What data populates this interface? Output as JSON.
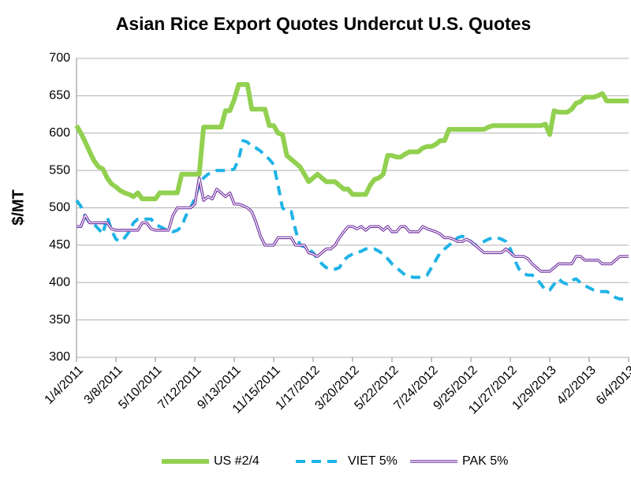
{
  "chart_data": {
    "type": "line",
    "title": "Asian Rice Export Quotes Undercut U.S. Quotes",
    "y_label": "$/MT",
    "categories": [
      "1/4/2011",
      null,
      null,
      null,
      null,
      null,
      null,
      null,
      null,
      "3/8/2011",
      null,
      null,
      null,
      null,
      null,
      null,
      null,
      null,
      "5/10/2011",
      null,
      null,
      null,
      null,
      null,
      null,
      null,
      null,
      "7/12/2011",
      null,
      null,
      null,
      null,
      null,
      null,
      null,
      null,
      "9/13/2011",
      null,
      null,
      null,
      null,
      null,
      null,
      null,
      null,
      "11/15/2011",
      null,
      null,
      null,
      null,
      null,
      null,
      null,
      null,
      "1/17/2012",
      null,
      null,
      null,
      null,
      null,
      null,
      null,
      null,
      "3/20/2012",
      null,
      null,
      null,
      null,
      null,
      null,
      null,
      null,
      "5/22/2012",
      null,
      null,
      null,
      null,
      null,
      null,
      null,
      null,
      "7/24/2012",
      null,
      null,
      null,
      null,
      null,
      null,
      null,
      null,
      "9/25/2012",
      null,
      null,
      null,
      null,
      null,
      null,
      null,
      null,
      "11/27/2012",
      null,
      null,
      null,
      null,
      null,
      null,
      null,
      null,
      "1/29/2013",
      null,
      null,
      null,
      null,
      null,
      null,
      null,
      null,
      "4/2/2013",
      null,
      null,
      null,
      null,
      null,
      null,
      null,
      null,
      "6/4/2013"
    ],
    "series": [
      {
        "name": "US #2/4",
        "color": "#92d050",
        "style": "solid",
        "values": [
          610,
          600,
          588,
          575,
          563,
          555,
          552,
          540,
          532,
          528,
          523,
          520,
          518,
          515,
          520,
          512,
          512,
          512,
          512,
          520,
          520,
          520,
          520,
          520,
          545,
          545,
          545,
          545,
          545,
          608,
          608,
          608,
          608,
          608,
          630,
          630,
          645,
          665,
          665,
          665,
          632,
          632,
          632,
          632,
          610,
          610,
          600,
          598,
          570,
          565,
          560,
          555,
          545,
          535,
          540,
          545,
          540,
          535,
          535,
          535,
          530,
          525,
          525,
          518,
          518,
          518,
          518,
          530,
          538,
          540,
          545,
          570,
          570,
          568,
          568,
          572,
          575,
          575,
          575,
          580,
          582,
          582,
          585,
          590,
          590,
          605,
          605,
          605,
          605,
          605,
          605,
          605,
          605,
          605,
          608,
          610,
          610,
          610,
          610,
          610,
          610,
          610,
          610,
          610,
          610,
          610,
          610,
          612,
          598,
          630,
          628,
          628,
          628,
          632,
          640,
          642,
          648,
          648,
          648,
          650,
          653,
          643,
          643,
          643,
          643,
          643,
          643
        ]
      },
      {
        "name": "VIET 5%",
        "color": "#1fb3e6",
        "style": "dashed",
        "values": [
          510,
          502,
          488,
          480,
          478,
          472,
          465,
          488,
          470,
          458,
          455,
          460,
          468,
          480,
          485,
          485,
          485,
          485,
          478,
          475,
          472,
          470,
          468,
          470,
          475,
          490,
          500,
          512,
          530,
          540,
          545,
          548,
          550,
          550,
          550,
          550,
          552,
          565,
          590,
          588,
          582,
          580,
          576,
          570,
          565,
          558,
          530,
          500,
          495,
          495,
          470,
          450,
          448,
          445,
          440,
          432,
          425,
          420,
          418,
          418,
          420,
          430,
          435,
          438,
          440,
          442,
          445,
          445,
          445,
          442,
          438,
          432,
          425,
          420,
          415,
          410,
          408,
          407,
          407,
          408,
          410,
          420,
          430,
          440,
          445,
          450,
          455,
          460,
          462,
          460,
          455,
          450,
          452,
          455,
          458,
          460,
          460,
          458,
          455,
          445,
          430,
          418,
          412,
          410,
          410,
          405,
          398,
          390,
          390,
          398,
          405,
          400,
          398,
          403,
          405,
          400,
          396,
          393,
          390,
          388,
          388,
          388,
          385,
          380,
          378,
          378,
          378
        ]
      },
      {
        "name": "PAK 5%",
        "color": "#7030a0",
        "style": "double",
        "values": [
          475,
          475,
          490,
          480,
          480,
          480,
          480,
          480,
          472,
          470,
          470,
          470,
          470,
          470,
          470,
          480,
          480,
          472,
          470,
          470,
          470,
          470,
          490,
          500,
          500,
          500,
          500,
          505,
          540,
          510,
          515,
          512,
          525,
          520,
          515,
          520,
          505,
          505,
          503,
          500,
          495,
          480,
          462,
          450,
          450,
          450,
          460,
          460,
          460,
          460,
          450,
          450,
          450,
          440,
          438,
          435,
          440,
          445,
          445,
          450,
          460,
          468,
          475,
          475,
          472,
          475,
          470,
          475,
          475,
          475,
          470,
          475,
          468,
          468,
          475,
          475,
          468,
          468,
          468,
          475,
          472,
          470,
          468,
          465,
          460,
          460,
          458,
          455,
          455,
          458,
          455,
          450,
          445,
          440,
          440,
          440,
          440,
          440,
          445,
          440,
          435,
          435,
          435,
          432,
          425,
          420,
          415,
          415,
          415,
          420,
          425,
          425,
          425,
          425,
          435,
          435,
          430,
          430,
          430,
          430,
          425,
          425,
          425,
          430,
          435,
          435,
          435
        ]
      }
    ],
    "ylim": [
      300,
      700
    ],
    "yticks": [
      300,
      350,
      400,
      450,
      500,
      550,
      600,
      650,
      700
    ],
    "grid": true,
    "legend": "bottom"
  }
}
